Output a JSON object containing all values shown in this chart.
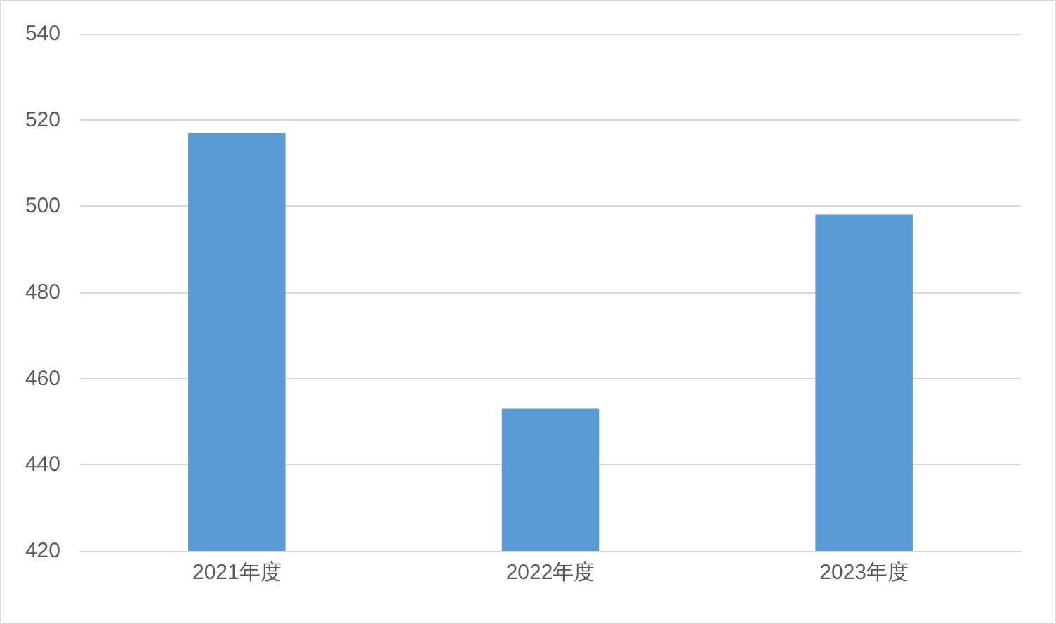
{
  "chart_data": {
    "type": "bar",
    "categories": [
      "2021年度",
      "2022年度",
      "2023年度"
    ],
    "values": [
      517,
      453,
      498
    ],
    "color": "#5b9bd5",
    "ylim": [
      420,
      540
    ],
    "yticks": [
      420,
      440,
      460,
      480,
      500,
      520,
      540
    ],
    "grid": "y"
  }
}
